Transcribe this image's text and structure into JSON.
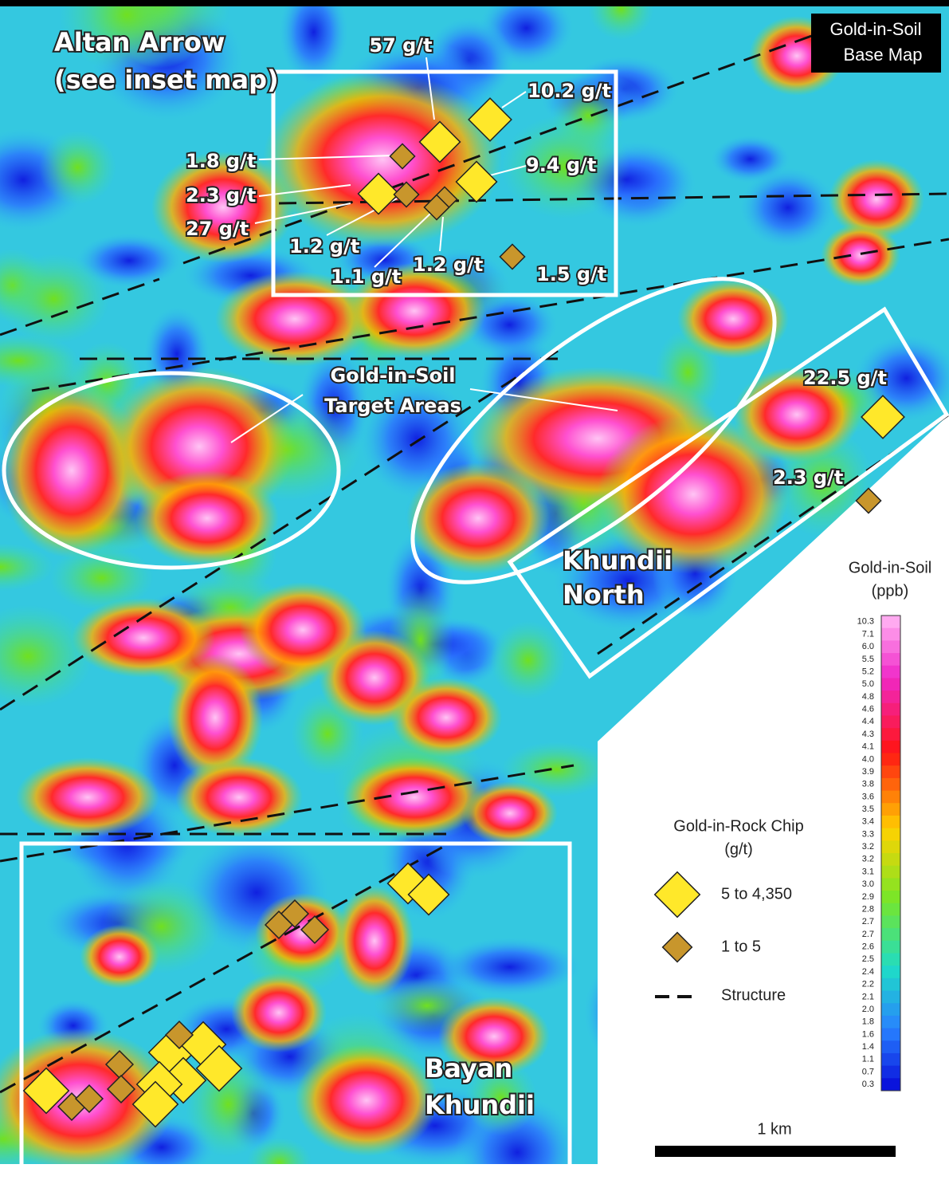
{
  "header": {
    "title": [
      "Gold-in-Soil",
      "Base Map"
    ]
  },
  "areas": {
    "altan_arrow": [
      "Altan Arrow",
      "(see inset map)"
    ],
    "target_label": [
      "Gold-in-Soil",
      "Target Areas"
    ],
    "khundii_north": [
      "Khundii",
      "North"
    ],
    "bayan_khundii": [
      "Bayan",
      "Khundii"
    ]
  },
  "samples": [
    "57 g/t",
    "10.2 g/t",
    "1.8 g/t",
    "9.4 g/t",
    "2.3 g/t",
    "27 g/t",
    "1.2 g/t",
    "1.1 g/t",
    "1.2 g/t",
    "1.5 g/t",
    "22.5 g/t",
    "2.3 g/t"
  ],
  "legend": {
    "soil_title": [
      "Gold-in-Soil",
      "(ppb)"
    ],
    "colorbar": [
      "10.3",
      "7.1",
      "6.0",
      "5.5",
      "5.2",
      "5.0",
      "4.8",
      "4.6",
      "4.4",
      "4.3",
      "4.1",
      "4.0",
      "3.9",
      "3.8",
      "3.6",
      "3.5",
      "3.4",
      "3.3",
      "3.2",
      "3.2",
      "3.1",
      "3.0",
      "2.9",
      "2.8",
      "2.7",
      "2.7",
      "2.6",
      "2.5",
      "2.4",
      "2.2",
      "2.1",
      "2.0",
      "1.8",
      "1.6",
      "1.4",
      "1.1",
      "0.7",
      "0.3"
    ],
    "rock_title": [
      "Gold-in-Rock Chip",
      "(g/t)"
    ],
    "rock_high": "5 to 4,350",
    "rock_low": "1 to 5",
    "structure": "Structure"
  },
  "scale_bar": "1 km"
}
